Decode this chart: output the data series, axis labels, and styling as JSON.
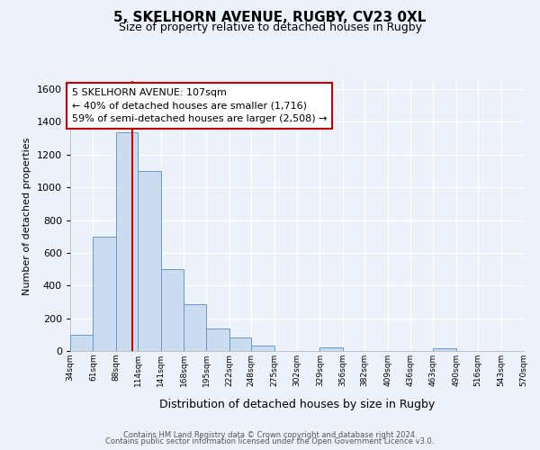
{
  "title": "5, SKELHORN AVENUE, RUGBY, CV23 0XL",
  "subtitle": "Size of property relative to detached houses in Rugby",
  "xlabel": "Distribution of detached houses by size in Rugby",
  "ylabel": "Number of detached properties",
  "bar_edges": [
    34,
    61,
    88,
    114,
    141,
    168,
    195,
    222,
    248,
    275,
    302,
    329,
    356,
    382,
    409,
    436,
    463,
    490,
    516,
    543,
    570
  ],
  "bar_heights": [
    100,
    700,
    1335,
    1100,
    500,
    285,
    140,
    80,
    35,
    0,
    0,
    20,
    0,
    0,
    0,
    0,
    15,
    0,
    0,
    0,
    0
  ],
  "bar_color": "#ccdcf0",
  "bar_edgecolor": "#6699cc",
  "property_line_x": 107,
  "property_line_color": "#cc0000",
  "ylim": [
    0,
    1650
  ],
  "yticks": [
    0,
    200,
    400,
    600,
    800,
    1000,
    1200,
    1400,
    1600
  ],
  "annotation_text": "5 SKELHORN AVENUE: 107sqm\n← 40% of detached houses are smaller (1,716)\n59% of semi-detached houses are larger (2,508) →",
  "annotation_box_facecolor": "#ffffff",
  "annotation_box_edgecolor": "#cc0000",
  "footer_line1": "Contains HM Land Registry data © Crown copyright and database right 2024.",
  "footer_line2": "Contains public sector information licensed under the Open Government Licence v3.0.",
  "background_color": "#edf2fa",
  "grid_color": "#ffffff",
  "tick_labels": [
    "34sqm",
    "61sqm",
    "88sqm",
    "114sqm",
    "141sqm",
    "168sqm",
    "195sqm",
    "222sqm",
    "248sqm",
    "275sqm",
    "302sqm",
    "329sqm",
    "356sqm",
    "382sqm",
    "409sqm",
    "436sqm",
    "463sqm",
    "490sqm",
    "516sqm",
    "543sqm",
    "570sqm"
  ]
}
